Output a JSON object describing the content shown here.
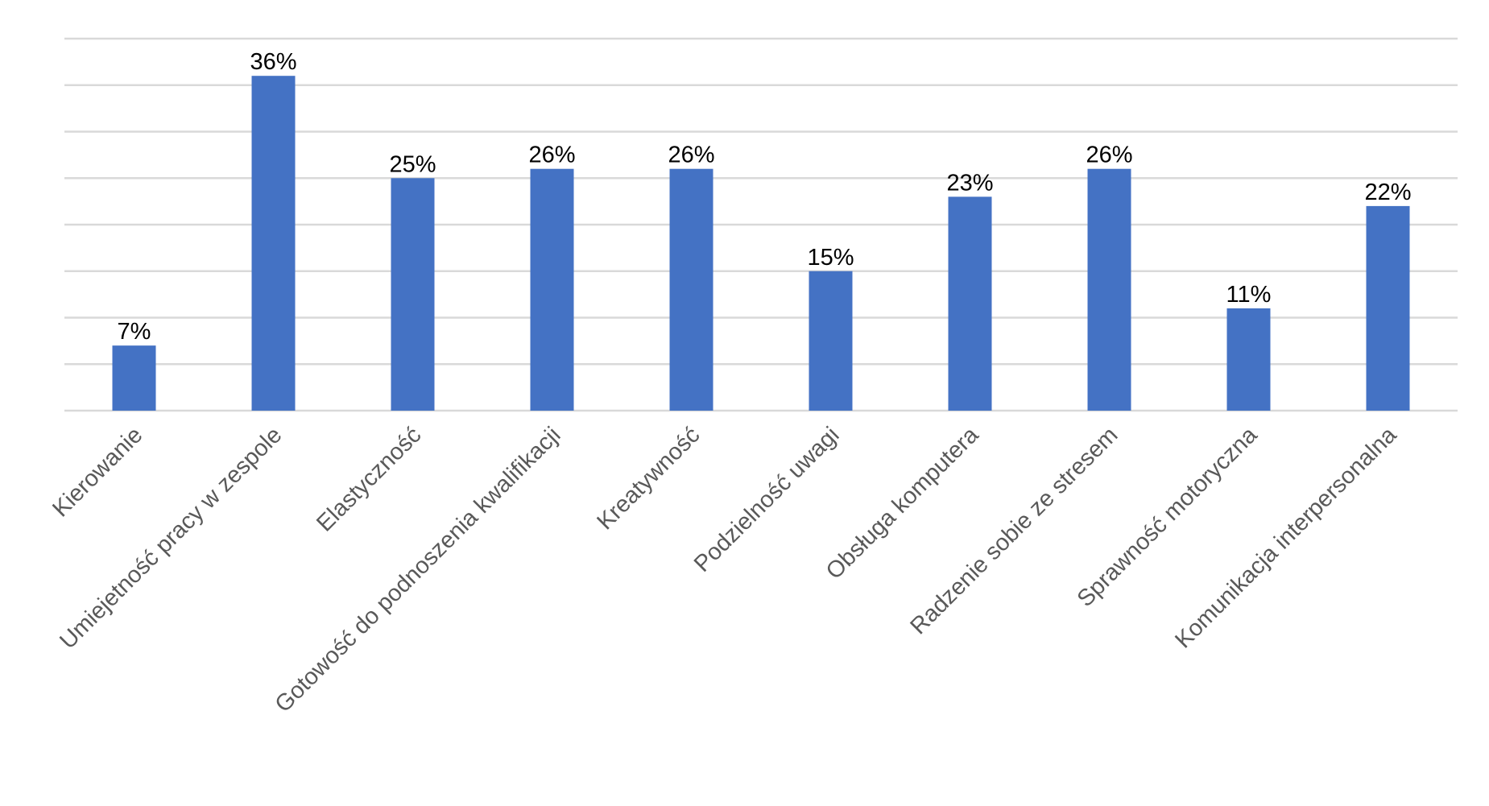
{
  "chart_data": {
    "type": "bar",
    "categories": [
      "Kierowanie",
      "Umiejetność pracy w zespole",
      "Elastyczność",
      "Gotowość do podnoszenia kwalifikacji",
      "Kreatywność",
      "Podzielność uwagi",
      "Obsługa komputera",
      "Radzenie sobie ze stresem",
      "Sprawność motoryczna",
      "Komunikacja interpersonalna"
    ],
    "values": [
      7,
      36,
      25,
      26,
      26,
      15,
      23,
      26,
      11,
      22
    ],
    "data_labels": [
      "7%",
      "36%",
      "25%",
      "26%",
      "26%",
      "15%",
      "23%",
      "26%",
      "11%",
      "22%"
    ],
    "ylim": [
      0,
      40
    ],
    "y_grid_step": 5,
    "grid": true,
    "legend": "none",
    "title": "",
    "xlabel": "",
    "ylabel": "",
    "colors": {
      "bar": "#4472c4",
      "grid": "#d9d9d9",
      "data_label": "#000000",
      "tick_label": "#595959"
    }
  }
}
